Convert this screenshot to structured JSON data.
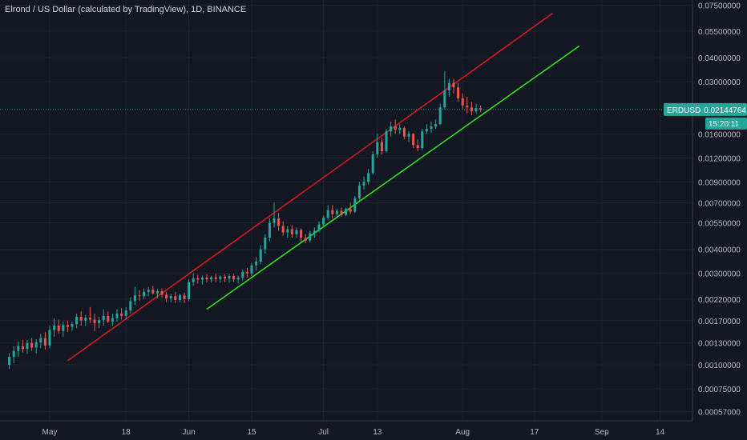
{
  "legend": {
    "title": "Elrond / US Dollar (calculated by TradingView), 1D, BINANCE"
  },
  "price_tag": {
    "symbol": "ERDUSD",
    "value": "0.02144764",
    "countdown": "15:20:11"
  },
  "colors": {
    "background": "#131722",
    "grid": "#1f2330",
    "up": "#26a69a",
    "down": "#ef5350",
    "upper_trendline": "#e0191d",
    "lower_trendline": "#2ee81b",
    "price_line": "#26a69a"
  },
  "chart_data": {
    "type": "candlestick",
    "title": "",
    "xlabel": "",
    "ylabel": "",
    "log_scale": true,
    "grid": true,
    "symbol": "ERDUSD",
    "exchange": "BINANCE",
    "interval": "1D",
    "last_price": 0.02144764,
    "x_range": [
      "2020-04-22",
      "2020-09-17"
    ],
    "y_range": [
      0.0005,
      0.081
    ],
    "y_ticks": [
      "0.07500000",
      "0.05500000",
      "0.04000000",
      "0.03000000",
      "0.02144764",
      "0.01600000",
      "0.01200000",
      "0.00900000",
      "0.00700000",
      "0.00550000",
      "0.00400000",
      "0.00300000",
      "0.00220000",
      "0.00170000",
      "0.00130000",
      "0.00100000",
      "0.00075000",
      "0.00057000"
    ],
    "x_ticks": [
      {
        "label": "May",
        "date": "2020-05-01"
      },
      {
        "label": "18",
        "date": "2020-05-18"
      },
      {
        "label": "Jun",
        "date": "2020-06-01"
      },
      {
        "label": "15",
        "date": "2020-06-15"
      },
      {
        "label": "Jul",
        "date": "2020-07-01"
      },
      {
        "label": "13",
        "date": "2020-07-13"
      },
      {
        "label": "Aug",
        "date": "2020-08-01"
      },
      {
        "label": "17",
        "date": "2020-08-17"
      },
      {
        "label": "Sep",
        "date": "2020-09-01"
      },
      {
        "label": "14",
        "date": "2020-09-14"
      }
    ],
    "trendlines": [
      {
        "color": "upper",
        "from": {
          "date": "2020-05-05",
          "price": 0.00105
        },
        "to": {
          "date": "2020-08-21",
          "price": 0.068
        }
      },
      {
        "color": "lower",
        "from": {
          "date": "2020-06-05",
          "price": 0.00195
        },
        "to": {
          "date": "2020-08-27",
          "price": 0.046
        }
      }
    ],
    "candles": [
      {
        "date": "2020-04-22",
        "o": 0.001,
        "h": 0.00115,
        "l": 0.00095,
        "c": 0.0011
      },
      {
        "date": "2020-04-23",
        "o": 0.0011,
        "h": 0.00125,
        "l": 0.00102,
        "c": 0.00118
      },
      {
        "date": "2020-04-24",
        "o": 0.00118,
        "h": 0.00132,
        "l": 0.0011,
        "c": 0.00125
      },
      {
        "date": "2020-04-25",
        "o": 0.00125,
        "h": 0.00135,
        "l": 0.00116,
        "c": 0.00121
      },
      {
        "date": "2020-04-26",
        "o": 0.00121,
        "h": 0.00135,
        "l": 0.00114,
        "c": 0.0013
      },
      {
        "date": "2020-04-27",
        "o": 0.0013,
        "h": 0.00138,
        "l": 0.00118,
        "c": 0.00123
      },
      {
        "date": "2020-04-28",
        "o": 0.00123,
        "h": 0.00136,
        "l": 0.00115,
        "c": 0.00131
      },
      {
        "date": "2020-04-29",
        "o": 0.00131,
        "h": 0.00145,
        "l": 0.00122,
        "c": 0.00138
      },
      {
        "date": "2020-04-30",
        "o": 0.00138,
        "h": 0.00148,
        "l": 0.0012,
        "c": 0.00126
      },
      {
        "date": "2020-05-01",
        "o": 0.00126,
        "h": 0.0016,
        "l": 0.00122,
        "c": 0.00152
      },
      {
        "date": "2020-05-02",
        "o": 0.00152,
        "h": 0.00175,
        "l": 0.0014,
        "c": 0.0016
      },
      {
        "date": "2020-05-03",
        "o": 0.0016,
        "h": 0.00172,
        "l": 0.00145,
        "c": 0.0015
      },
      {
        "date": "2020-05-04",
        "o": 0.0015,
        "h": 0.00168,
        "l": 0.0014,
        "c": 0.00161
      },
      {
        "date": "2020-05-05",
        "o": 0.00161,
        "h": 0.0017,
        "l": 0.00148,
        "c": 0.00158
      },
      {
        "date": "2020-05-06",
        "o": 0.00158,
        "h": 0.00168,
        "l": 0.0015,
        "c": 0.00163
      },
      {
        "date": "2020-05-07",
        "o": 0.00163,
        "h": 0.00185,
        "l": 0.00155,
        "c": 0.00178
      },
      {
        "date": "2020-05-08",
        "o": 0.00178,
        "h": 0.0019,
        "l": 0.0016,
        "c": 0.0017
      },
      {
        "date": "2020-05-09",
        "o": 0.0017,
        "h": 0.00182,
        "l": 0.0016,
        "c": 0.00176
      },
      {
        "date": "2020-05-10",
        "o": 0.00176,
        "h": 0.002,
        "l": 0.00165,
        "c": 0.00172
      },
      {
        "date": "2020-05-11",
        "o": 0.00172,
        "h": 0.00185,
        "l": 0.0015,
        "c": 0.00165
      },
      {
        "date": "2020-05-12",
        "o": 0.00165,
        "h": 0.00178,
        "l": 0.00155,
        "c": 0.00171
      },
      {
        "date": "2020-05-13",
        "o": 0.00171,
        "h": 0.00195,
        "l": 0.0016,
        "c": 0.0018
      },
      {
        "date": "2020-05-14",
        "o": 0.0018,
        "h": 0.0019,
        "l": 0.00165,
        "c": 0.00168
      },
      {
        "date": "2020-05-15",
        "o": 0.00168,
        "h": 0.00185,
        "l": 0.0016,
        "c": 0.00175
      },
      {
        "date": "2020-05-16",
        "o": 0.00175,
        "h": 0.00195,
        "l": 0.00168,
        "c": 0.00185
      },
      {
        "date": "2020-05-17",
        "o": 0.00185,
        "h": 0.00198,
        "l": 0.00172,
        "c": 0.0018
      },
      {
        "date": "2020-05-18",
        "o": 0.0018,
        "h": 0.002,
        "l": 0.00172,
        "c": 0.00192
      },
      {
        "date": "2020-05-19",
        "o": 0.00192,
        "h": 0.00225,
        "l": 0.00185,
        "c": 0.00215
      },
      {
        "date": "2020-05-20",
        "o": 0.00215,
        "h": 0.00255,
        "l": 0.00205,
        "c": 0.0023
      },
      {
        "date": "2020-05-21",
        "o": 0.0023,
        "h": 0.00245,
        "l": 0.00215,
        "c": 0.00228
      },
      {
        "date": "2020-05-22",
        "o": 0.00228,
        "h": 0.0025,
        "l": 0.0022,
        "c": 0.0024
      },
      {
        "date": "2020-05-23",
        "o": 0.0024,
        "h": 0.00255,
        "l": 0.00228,
        "c": 0.00246
      },
      {
        "date": "2020-05-24",
        "o": 0.00246,
        "h": 0.00258,
        "l": 0.00232,
        "c": 0.00236
      },
      {
        "date": "2020-05-25",
        "o": 0.00236,
        "h": 0.00248,
        "l": 0.00222,
        "c": 0.00242
      },
      {
        "date": "2020-05-26",
        "o": 0.00242,
        "h": 0.0025,
        "l": 0.00225,
        "c": 0.00232
      },
      {
        "date": "2020-05-27",
        "o": 0.00232,
        "h": 0.0024,
        "l": 0.00212,
        "c": 0.00222
      },
      {
        "date": "2020-05-28",
        "o": 0.00222,
        "h": 0.00235,
        "l": 0.00212,
        "c": 0.00228
      },
      {
        "date": "2020-05-29",
        "o": 0.00228,
        "h": 0.0024,
        "l": 0.0021,
        "c": 0.00218
      },
      {
        "date": "2020-05-30",
        "o": 0.00218,
        "h": 0.00235,
        "l": 0.00212,
        "c": 0.0023
      },
      {
        "date": "2020-05-31",
        "o": 0.0023,
        "h": 0.00238,
        "l": 0.0021,
        "c": 0.0022
      },
      {
        "date": "2020-06-01",
        "o": 0.0022,
        "h": 0.0028,
        "l": 0.00215,
        "c": 0.0027
      },
      {
        "date": "2020-06-02",
        "o": 0.0027,
        "h": 0.003,
        "l": 0.00258,
        "c": 0.00282
      },
      {
        "date": "2020-06-03",
        "o": 0.00282,
        "h": 0.00295,
        "l": 0.00265,
        "c": 0.00278
      },
      {
        "date": "2020-06-04",
        "o": 0.00278,
        "h": 0.00292,
        "l": 0.00262,
        "c": 0.00285
      },
      {
        "date": "2020-06-05",
        "o": 0.00285,
        "h": 0.00296,
        "l": 0.00268,
        "c": 0.00279
      },
      {
        "date": "2020-06-06",
        "o": 0.00279,
        "h": 0.00292,
        "l": 0.00268,
        "c": 0.00286
      },
      {
        "date": "2020-06-07",
        "o": 0.00286,
        "h": 0.00298,
        "l": 0.0027,
        "c": 0.0028
      },
      {
        "date": "2020-06-08",
        "o": 0.0028,
        "h": 0.00292,
        "l": 0.00268,
        "c": 0.00288
      },
      {
        "date": "2020-06-09",
        "o": 0.00288,
        "h": 0.00296,
        "l": 0.0027,
        "c": 0.00282
      },
      {
        "date": "2020-06-10",
        "o": 0.00282,
        "h": 0.00296,
        "l": 0.00268,
        "c": 0.0029
      },
      {
        "date": "2020-06-11",
        "o": 0.0029,
        "h": 0.00298,
        "l": 0.0027,
        "c": 0.00279
      },
      {
        "date": "2020-06-12",
        "o": 0.00279,
        "h": 0.00292,
        "l": 0.00265,
        "c": 0.00285
      },
      {
        "date": "2020-06-13",
        "o": 0.00285,
        "h": 0.00315,
        "l": 0.00275,
        "c": 0.00305
      },
      {
        "date": "2020-06-14",
        "o": 0.00305,
        "h": 0.0032,
        "l": 0.00285,
        "c": 0.003
      },
      {
        "date": "2020-06-15",
        "o": 0.003,
        "h": 0.0034,
        "l": 0.0029,
        "c": 0.0033
      },
      {
        "date": "2020-06-16",
        "o": 0.0033,
        "h": 0.00365,
        "l": 0.0031,
        "c": 0.00345
      },
      {
        "date": "2020-06-17",
        "o": 0.00345,
        "h": 0.0042,
        "l": 0.00335,
        "c": 0.004
      },
      {
        "date": "2020-06-18",
        "o": 0.004,
        "h": 0.0048,
        "l": 0.0038,
        "c": 0.0046
      },
      {
        "date": "2020-06-19",
        "o": 0.0046,
        "h": 0.0058,
        "l": 0.0044,
        "c": 0.0055
      },
      {
        "date": "2020-06-20",
        "o": 0.0055,
        "h": 0.007,
        "l": 0.0052,
        "c": 0.0058
      },
      {
        "date": "2020-06-21",
        "o": 0.0058,
        "h": 0.0062,
        "l": 0.005,
        "c": 0.0053
      },
      {
        "date": "2020-06-22",
        "o": 0.0053,
        "h": 0.0056,
        "l": 0.0047,
        "c": 0.0049
      },
      {
        "date": "2020-06-23",
        "o": 0.0049,
        "h": 0.0053,
        "l": 0.0046,
        "c": 0.0051
      },
      {
        "date": "2020-06-24",
        "o": 0.0051,
        "h": 0.00535,
        "l": 0.0046,
        "c": 0.0048
      },
      {
        "date": "2020-06-25",
        "o": 0.0048,
        "h": 0.0052,
        "l": 0.0046,
        "c": 0.00505
      },
      {
        "date": "2020-06-26",
        "o": 0.00505,
        "h": 0.00515,
        "l": 0.0044,
        "c": 0.0046
      },
      {
        "date": "2020-06-27",
        "o": 0.0046,
        "h": 0.0048,
        "l": 0.0043,
        "c": 0.00445
      },
      {
        "date": "2020-06-28",
        "o": 0.00445,
        "h": 0.005,
        "l": 0.00435,
        "c": 0.00485
      },
      {
        "date": "2020-06-29",
        "o": 0.00485,
        "h": 0.0052,
        "l": 0.0046,
        "c": 0.005
      },
      {
        "date": "2020-06-30",
        "o": 0.005,
        "h": 0.0056,
        "l": 0.0049,
        "c": 0.0054
      },
      {
        "date": "2020-07-01",
        "o": 0.0054,
        "h": 0.006,
        "l": 0.0052,
        "c": 0.00585
      },
      {
        "date": "2020-07-02",
        "o": 0.00585,
        "h": 0.0068,
        "l": 0.0057,
        "c": 0.0064
      },
      {
        "date": "2020-07-03",
        "o": 0.0064,
        "h": 0.0068,
        "l": 0.0058,
        "c": 0.0061
      },
      {
        "date": "2020-07-04",
        "o": 0.0061,
        "h": 0.0065,
        "l": 0.0058,
        "c": 0.00635
      },
      {
        "date": "2020-07-05",
        "o": 0.00635,
        "h": 0.0066,
        "l": 0.0059,
        "c": 0.00605
      },
      {
        "date": "2020-07-06",
        "o": 0.00605,
        "h": 0.0066,
        "l": 0.00595,
        "c": 0.0065
      },
      {
        "date": "2020-07-07",
        "o": 0.0065,
        "h": 0.007,
        "l": 0.0061,
        "c": 0.0063
      },
      {
        "date": "2020-07-08",
        "o": 0.0063,
        "h": 0.0076,
        "l": 0.0062,
        "c": 0.0074
      },
      {
        "date": "2020-07-09",
        "o": 0.0074,
        "h": 0.009,
        "l": 0.0072,
        "c": 0.0086
      },
      {
        "date": "2020-07-10",
        "o": 0.0086,
        "h": 0.0096,
        "l": 0.0082,
        "c": 0.009
      },
      {
        "date": "2020-07-11",
        "o": 0.009,
        "h": 0.0105,
        "l": 0.0087,
        "c": 0.01
      },
      {
        "date": "2020-07-12",
        "o": 0.01,
        "h": 0.013,
        "l": 0.0098,
        "c": 0.0125
      },
      {
        "date": "2020-07-13",
        "o": 0.0125,
        "h": 0.016,
        "l": 0.012,
        "c": 0.0145
      },
      {
        "date": "2020-07-14",
        "o": 0.0145,
        "h": 0.0152,
        "l": 0.0125,
        "c": 0.013
      },
      {
        "date": "2020-07-15",
        "o": 0.013,
        "h": 0.017,
        "l": 0.0128,
        "c": 0.0165
      },
      {
        "date": "2020-07-16",
        "o": 0.0165,
        "h": 0.0185,
        "l": 0.0155,
        "c": 0.0175
      },
      {
        "date": "2020-07-17",
        "o": 0.0175,
        "h": 0.019,
        "l": 0.016,
        "c": 0.0168
      },
      {
        "date": "2020-07-18",
        "o": 0.0168,
        "h": 0.018,
        "l": 0.016,
        "c": 0.0172
      },
      {
        "date": "2020-07-19",
        "o": 0.0172,
        "h": 0.0176,
        "l": 0.015,
        "c": 0.0155
      },
      {
        "date": "2020-07-20",
        "o": 0.0155,
        "h": 0.0165,
        "l": 0.0145,
        "c": 0.016
      },
      {
        "date": "2020-07-21",
        "o": 0.016,
        "h": 0.0162,
        "l": 0.0135,
        "c": 0.014
      },
      {
        "date": "2020-07-22",
        "o": 0.014,
        "h": 0.015,
        "l": 0.013,
        "c": 0.0135
      },
      {
        "date": "2020-07-23",
        "o": 0.0135,
        "h": 0.017,
        "l": 0.0132,
        "c": 0.0165
      },
      {
        "date": "2020-07-24",
        "o": 0.0165,
        "h": 0.018,
        "l": 0.016,
        "c": 0.017
      },
      {
        "date": "2020-07-25",
        "o": 0.017,
        "h": 0.0185,
        "l": 0.0162,
        "c": 0.0175
      },
      {
        "date": "2020-07-26",
        "o": 0.0175,
        "h": 0.019,
        "l": 0.017,
        "c": 0.018
      },
      {
        "date": "2020-07-27",
        "o": 0.018,
        "h": 0.023,
        "l": 0.0178,
        "c": 0.022
      },
      {
        "date": "2020-07-28",
        "o": 0.022,
        "h": 0.034,
        "l": 0.0215,
        "c": 0.027
      },
      {
        "date": "2020-07-29",
        "o": 0.027,
        "h": 0.031,
        "l": 0.025,
        "c": 0.0295
      },
      {
        "date": "2020-07-30",
        "o": 0.0295,
        "h": 0.031,
        "l": 0.026,
        "c": 0.028
      },
      {
        "date": "2020-07-31",
        "o": 0.028,
        "h": 0.0295,
        "l": 0.0235,
        "c": 0.0245
      },
      {
        "date": "2020-08-01",
        "o": 0.0245,
        "h": 0.026,
        "l": 0.0215,
        "c": 0.0225
      },
      {
        "date": "2020-08-02",
        "o": 0.0225,
        "h": 0.025,
        "l": 0.0205,
        "c": 0.022
      },
      {
        "date": "2020-08-03",
        "o": 0.022,
        "h": 0.0235,
        "l": 0.02,
        "c": 0.021
      },
      {
        "date": "2020-08-04",
        "o": 0.021,
        "h": 0.023,
        "l": 0.0205,
        "c": 0.0218
      },
      {
        "date": "2020-08-05",
        "o": 0.0218,
        "h": 0.0225,
        "l": 0.0208,
        "c": 0.02144764
      }
    ]
  }
}
